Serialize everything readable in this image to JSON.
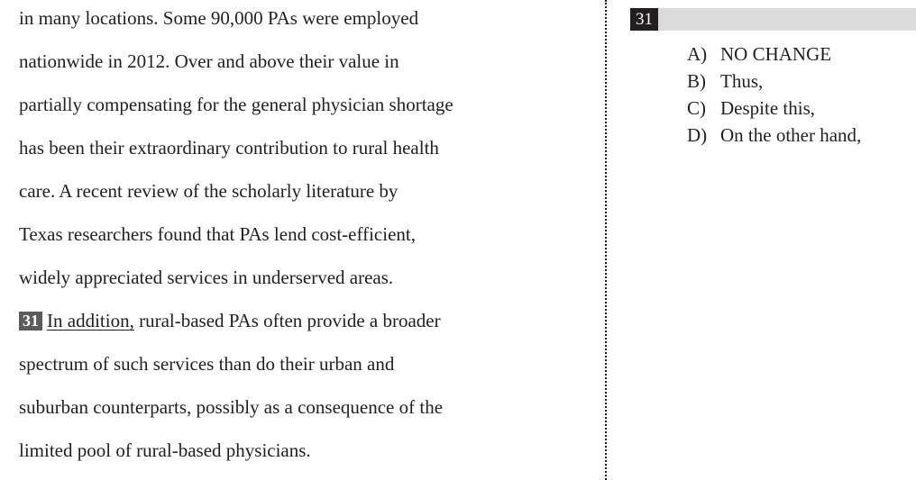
{
  "passage": {
    "lines": [
      "in many locations. Some 90,000 PAs were employed",
      "nationwide in 2012. Over and above their value in",
      "partially compensating for the general physician shortage",
      "has been their extraordinary contribution to rural health",
      "care. A recent review of the scholarly literature by",
      "Texas researchers found that PAs lend cost-efficient,",
      "widely appreciated services in underserved areas."
    ],
    "question_line": {
      "number": "31",
      "underlined": "In addition,",
      "rest": " rural-based PAs often provide a broader"
    },
    "after_lines": [
      "spectrum of such services than do their urban and",
      "suburban counterparts, possibly as a consequence of the",
      "limited pool of rural-based physicians."
    ]
  },
  "question": {
    "number": "31",
    "choices": [
      {
        "letter": "A)",
        "text": "NO CHANGE"
      },
      {
        "letter": "B)",
        "text": "Thus,"
      },
      {
        "letter": "C)",
        "text": "Despite this,"
      },
      {
        "letter": "D)",
        "text": "On the other hand,"
      }
    ]
  }
}
